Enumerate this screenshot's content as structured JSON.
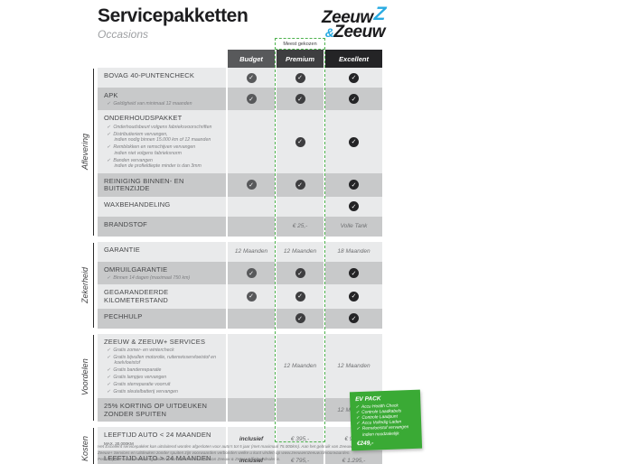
{
  "header": {
    "title": "Servicepakketten",
    "subtitle": "Occasions"
  },
  "logo": {
    "top_text": "Zeeuw",
    "z_icon": "Z",
    "amp": "&",
    "bottom_text": "Zeeuw",
    "blue": "#29abe2"
  },
  "table": {
    "most_chosen_label": "Meest gekozen",
    "columns": [
      "Budget",
      "Premium",
      "Excellent"
    ],
    "column_colors": [
      "#58595b",
      "#3e3e40",
      "#242426"
    ],
    "row_colors": {
      "light": "#e9eaeb",
      "dark": "#c8c9ca"
    },
    "highlight_border_color": "#4db24d",
    "check_icon": "✓",
    "sections": [
      {
        "name": "Aflevering",
        "rows": [
          {
            "label": "BOVAG 40-PUNTENCHECK",
            "cells": [
              "check",
              "check",
              "check"
            ]
          },
          {
            "label": "APK",
            "subs": [
              [
                "Geldigheid van minimaal 12 maanden"
              ]
            ],
            "cells": [
              "check",
              "check",
              "check"
            ]
          },
          {
            "label": "ONDERHOUDSPAKKET",
            "subs": [
              [
                "Onderhoudsbeurt volgens fabrieksvoorschriften"
              ],
              [
                "Distributieriem vervangen,",
                "indien nodig binnen 15.000 km of 12 maanden"
              ],
              [
                "Remblokken en remschijven vervangen",
                "indien niet volgens fabrieksnorm"
              ],
              [
                "Banden vervangen",
                "indien de profieldiepte minder is dan 3mm"
              ]
            ],
            "cells": [
              "",
              "check",
              "check"
            ]
          },
          {
            "label": "REINIGING BINNEN- EN BUITENZIJDE",
            "cells": [
              "check",
              "check",
              "check"
            ]
          },
          {
            "label": "WAXBEHANDELING",
            "cells": [
              "",
              "",
              "check"
            ]
          },
          {
            "label": "BRANDSTOF",
            "cells": [
              "",
              "€ 25,-",
              "Volle Tank"
            ]
          }
        ]
      },
      {
        "name": "Zekerheid",
        "rows": [
          {
            "label": "GARANTIE",
            "cells": [
              "12 Maanden",
              "12 Maanden",
              "18 Maanden"
            ]
          },
          {
            "label": "OMRUILGARANTIE",
            "subs": [
              [
                "Binnen 14 dagen (maximaal 750 km)"
              ]
            ],
            "cells": [
              "check",
              "check",
              "check"
            ]
          },
          {
            "label": "GEGARANDEERDE KILOMETERSTAND",
            "cells": [
              "check",
              "check",
              "check"
            ]
          },
          {
            "label": "PECHHULP",
            "cells": [
              "",
              "check",
              "check"
            ]
          }
        ]
      },
      {
        "name": "Voordelen",
        "rows": [
          {
            "label": "ZEEUW & ZEEUW+ SERVICES",
            "subs": [
              [
                "Gratis zomer- en wintercheck"
              ],
              [
                "Gratis bijvullen motorolie, ruitenwisservloeistof en",
                "koelvloeistof"
              ],
              [
                "Gratis bandenreparatie"
              ],
              [
                "Gratis lampjes vervangen"
              ],
              [
                "Gratis sterreparatie voorruit"
              ],
              [
                "Gratis sleutelbatterij vervangen"
              ]
            ],
            "cells": [
              "",
              "12 Maanden",
              "12 Maanden"
            ]
          },
          {
            "label": "25% KORTING OP UITDEUKEN ZONDER SPUITEN",
            "cells": [
              "",
              "",
              "12 Maanden"
            ]
          }
        ]
      },
      {
        "name": "Kosten",
        "rows": [
          {
            "label": "LEEFTIJD AUTO < 24 MAANDEN",
            "note": "MAX. 30.000KM",
            "cells": [
              "inclusief",
              "€ 395,-",
              "€ 995,-"
            ]
          },
          {
            "label": "LEEFTIJD AUTO > 24 MAANDEN",
            "cells": [
              "inclusief",
              "€ 795,-",
              "€ 1.295,-"
            ]
          }
        ]
      }
    ]
  },
  "ev_pack": {
    "title": "EV PACK",
    "bg_color": "#3aaa35",
    "items": [
      "Accu Health Check",
      "Controle Laadkabels",
      "Controle Laadpunt",
      "Accu Volledig Laden",
      "Remvloeistof vervangen indien noodzakelijk"
    ],
    "price": "€249,-"
  },
  "footnote": "Het Excellent servicepakket kan uitsluitend worden afgesloten voor auto's tot 5 jaar (met maximaal 75.000km). Aan het gebruik van Zeeuw & Zeeuw+ Services en Uitdeuken zonder spuiten zijn voorwaarden verbonden welke u kunt vinden op www.zeeuwenzeeuw.nl/voorwaarden. Pechhulp kan alleen worden geboden voor automerken waarvan Zeeuw & Zeeuw officieel dealer is."
}
